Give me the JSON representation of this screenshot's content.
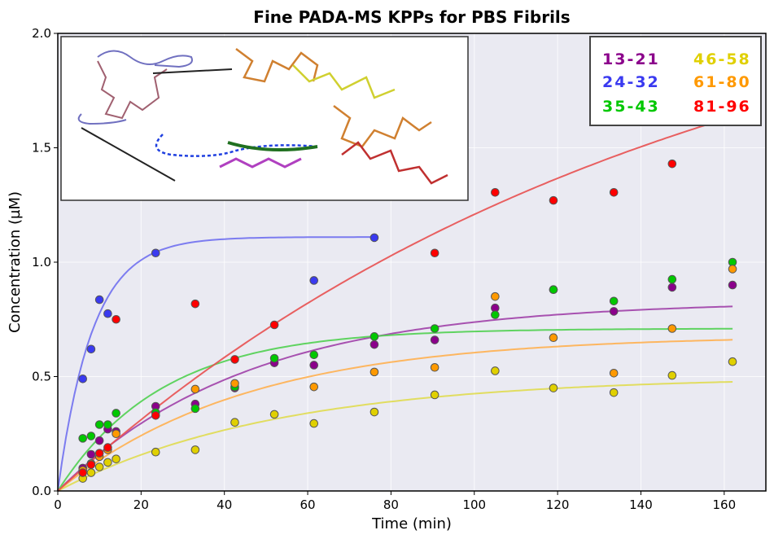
{
  "chart_data": {
    "type": "scatter",
    "title": "Fine PADA-MS KPPs for PBS Fibrils",
    "xlabel": "Time (min)",
    "ylabel": "Concentration (µM)",
    "xlim": [
      0,
      170
    ],
    "ylim": [
      0,
      2.0
    ],
    "xticks": [
      0,
      20,
      40,
      60,
      80,
      100,
      120,
      140,
      160
    ],
    "yticks": [
      "0.0",
      "0.5",
      "1.0",
      "1.5",
      "2.0"
    ],
    "grid": true,
    "legend_placement": "top-right",
    "fit_model": "A(1-exp(-kt))",
    "series": [
      {
        "name": "13-21",
        "color": "#8b008b",
        "fit_color": "#a040a8",
        "x": [
          6,
          8,
          10,
          12,
          14,
          23.5,
          33,
          42.5,
          52,
          61.5,
          76,
          90.5,
          105,
          119,
          133.5,
          147.5,
          162
        ],
        "y": [
          0.1,
          0.16,
          0.22,
          0.27,
          0.26,
          0.37,
          0.38,
          0.45,
          0.56,
          0.55,
          0.64,
          0.66,
          0.8,
          0.88,
          0.785,
          0.89,
          0.9
        ],
        "fit": {
          "A": 0.83,
          "k": 0.022,
          "tmax": 162
        }
      },
      {
        "name": "24-32",
        "color": "#3a3af0",
        "fit_color": "#7070f0",
        "x": [
          6,
          8,
          10,
          12,
          23.5,
          61.5,
          76
        ],
        "y": [
          0.49,
          0.62,
          0.836,
          0.775,
          1.04,
          0.92,
          1.107
        ],
        "fit": {
          "A": 1.11,
          "k": 0.12,
          "tmax": 76
        }
      },
      {
        "name": "35-43",
        "color": "#00c800",
        "fit_color": "#50d050",
        "x": [
          6,
          8,
          10,
          12,
          14,
          23.5,
          33,
          42.5,
          52,
          61.5,
          76,
          90.5,
          105,
          119,
          133.5,
          147.5,
          162
        ],
        "y": [
          0.23,
          0.24,
          0.29,
          0.29,
          0.34,
          0.343,
          0.36,
          0.455,
          0.58,
          0.595,
          0.675,
          0.71,
          0.77,
          0.88,
          0.83,
          0.925,
          1.0
        ],
        "fit": {
          "A": 0.71,
          "k": 0.04,
          "tmax": 162
        }
      },
      {
        "name": "46-58",
        "color": "#e0d000",
        "fit_color": "#e0dc50",
        "x": [
          6,
          8,
          10,
          12,
          14,
          23.5,
          33,
          42.5,
          52,
          61.5,
          76,
          90.5,
          105,
          119,
          133.5,
          147.5,
          162
        ],
        "y": [
          0.055,
          0.08,
          0.105,
          0.125,
          0.14,
          0.17,
          0.18,
          0.3,
          0.335,
          0.295,
          0.345,
          0.42,
          0.525,
          0.45,
          0.43,
          0.505,
          0.565
        ],
        "fit": {
          "A": 0.5,
          "k": 0.019,
          "tmax": 162
        }
      },
      {
        "name": "61-80",
        "color": "#ff9900",
        "fit_color": "#ffb050",
        "x": [
          6,
          8,
          10,
          12,
          14,
          33,
          42.5,
          61.5,
          76,
          90.5,
          105,
          119,
          133.5,
          147.5,
          162
        ],
        "y": [
          0.09,
          0.12,
          0.15,
          0.18,
          0.25,
          0.445,
          0.47,
          0.455,
          0.52,
          0.54,
          0.85,
          0.67,
          0.515,
          0.71,
          0.97
        ],
        "fit": {
          "A": 0.68,
          "k": 0.022,
          "tmax": 162
        }
      },
      {
        "name": "81-96",
        "color": "#ff0000",
        "fit_color": "#e85050",
        "x": [
          6,
          8,
          10,
          12,
          14,
          23.5,
          33,
          42.5,
          52,
          90.5,
          105,
          119,
          133.5,
          147.5
        ],
        "y": [
          0.08,
          0.115,
          0.165,
          0.19,
          0.75,
          0.33,
          0.818,
          0.575,
          0.726,
          1.04,
          1.305,
          1.27,
          1.305,
          1.43
        ],
        "fit": {
          "A": 2.45,
          "k": 0.0068,
          "tmax": 162
        }
      }
    ]
  },
  "inset": {
    "description_icon": "protein-structure-image"
  }
}
